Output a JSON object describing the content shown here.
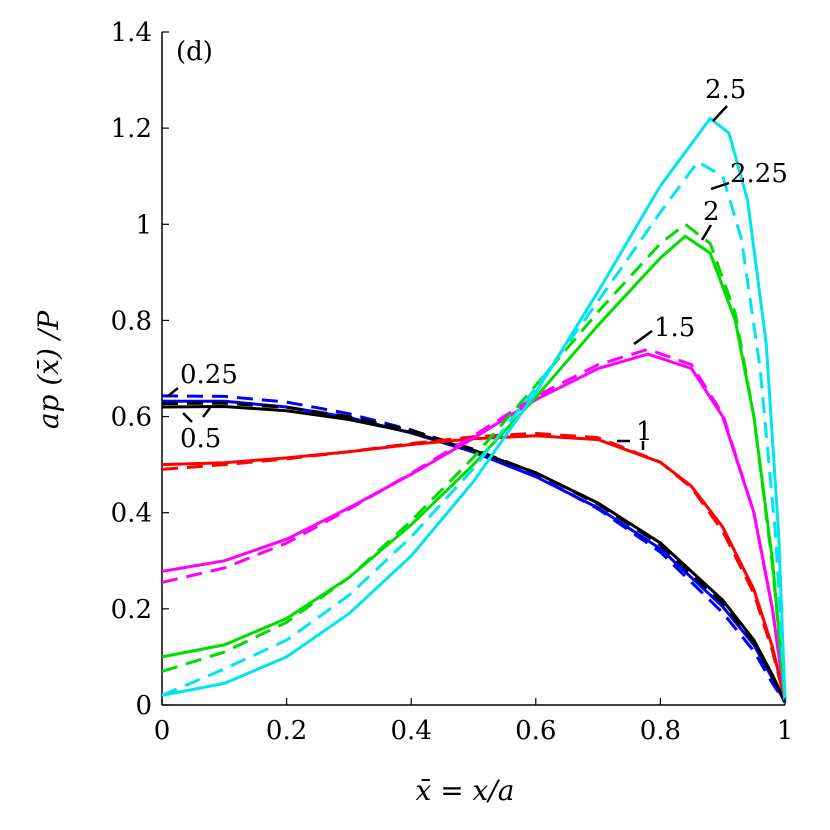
{
  "chart_data": {
    "type": "line",
    "panel_label": "(d)",
    "xlabel": "x̄ = x/a",
    "ylabel": "ap (x̄) /P",
    "xlim": [
      0,
      1
    ],
    "ylim": [
      0,
      1.4
    ],
    "xticks": [
      "0",
      "0.2",
      "0.4",
      "0.6",
      "0.8",
      "1"
    ],
    "yticks": [
      "0",
      "0.2",
      "0.4",
      "0.6",
      "0.8",
      "1",
      "1.2",
      "1.4"
    ],
    "grid": false,
    "series": [
      {
        "label": "0.25",
        "color": "#0000ff",
        "solid": [
          [
            0,
            0.632
          ],
          [
            0.1,
            0.632
          ],
          [
            0.2,
            0.62
          ],
          [
            0.3,
            0.598
          ],
          [
            0.4,
            0.566
          ],
          [
            0.5,
            0.526
          ],
          [
            0.6,
            0.475
          ],
          [
            0.7,
            0.41
          ],
          [
            0.8,
            0.325
          ],
          [
            0.9,
            0.205
          ],
          [
            0.95,
            0.125
          ],
          [
            0.98,
            0.055
          ],
          [
            1,
            0.005
          ]
        ],
        "dashed": [
          [
            0,
            0.643
          ],
          [
            0.1,
            0.642
          ],
          [
            0.2,
            0.63
          ],
          [
            0.3,
            0.606
          ],
          [
            0.4,
            0.572
          ],
          [
            0.5,
            0.53
          ],
          [
            0.6,
            0.477
          ],
          [
            0.7,
            0.408
          ],
          [
            0.8,
            0.318
          ],
          [
            0.9,
            0.192
          ],
          [
            0.95,
            0.112
          ],
          [
            0.98,
            0.045
          ],
          [
            1,
            0.005
          ]
        ]
      },
      {
        "label": "0.5",
        "color": "#000000",
        "solid": [
          [
            0,
            0.62
          ],
          [
            0.1,
            0.621
          ],
          [
            0.2,
            0.612
          ],
          [
            0.3,
            0.594
          ],
          [
            0.4,
            0.567
          ],
          [
            0.5,
            0.53
          ],
          [
            0.6,
            0.483
          ],
          [
            0.7,
            0.42
          ],
          [
            0.8,
            0.337
          ],
          [
            0.9,
            0.218
          ],
          [
            0.95,
            0.135
          ],
          [
            0.98,
            0.062
          ],
          [
            1,
            0.008
          ]
        ],
        "dashed": [
          [
            0,
            0.627
          ],
          [
            0.1,
            0.628
          ],
          [
            0.2,
            0.619
          ],
          [
            0.3,
            0.6
          ],
          [
            0.4,
            0.571
          ],
          [
            0.5,
            0.532
          ],
          [
            0.6,
            0.483
          ],
          [
            0.7,
            0.418
          ],
          [
            0.8,
            0.333
          ],
          [
            0.9,
            0.212
          ],
          [
            0.95,
            0.13
          ],
          [
            0.98,
            0.058
          ],
          [
            1,
            0.008
          ]
        ]
      },
      {
        "label": "1",
        "color": "#ff0000",
        "solid": [
          [
            0,
            0.5
          ],
          [
            0.1,
            0.504
          ],
          [
            0.2,
            0.514
          ],
          [
            0.3,
            0.527
          ],
          [
            0.4,
            0.542
          ],
          [
            0.5,
            0.554
          ],
          [
            0.6,
            0.56
          ],
          [
            0.7,
            0.552
          ],
          [
            0.8,
            0.505
          ],
          [
            0.85,
            0.455
          ],
          [
            0.9,
            0.37
          ],
          [
            0.95,
            0.24
          ],
          [
            0.98,
            0.12
          ],
          [
            1,
            0.01
          ]
        ],
        "dashed": [
          [
            0,
            0.49
          ],
          [
            0.1,
            0.5
          ],
          [
            0.2,
            0.512
          ],
          [
            0.3,
            0.527
          ],
          [
            0.4,
            0.544
          ],
          [
            0.5,
            0.558
          ],
          [
            0.6,
            0.565
          ],
          [
            0.7,
            0.556
          ],
          [
            0.8,
            0.505
          ],
          [
            0.85,
            0.452
          ],
          [
            0.9,
            0.362
          ],
          [
            0.95,
            0.232
          ],
          [
            0.98,
            0.112
          ],
          [
            1,
            0.01
          ]
        ]
      },
      {
        "label": "1.5",
        "color": "#ff00ff",
        "solid": [
          [
            0,
            0.278
          ],
          [
            0.1,
            0.3
          ],
          [
            0.2,
            0.345
          ],
          [
            0.3,
            0.41
          ],
          [
            0.4,
            0.48
          ],
          [
            0.5,
            0.555
          ],
          [
            0.6,
            0.635
          ],
          [
            0.7,
            0.7
          ],
          [
            0.78,
            0.73
          ],
          [
            0.85,
            0.7
          ],
          [
            0.9,
            0.6
          ],
          [
            0.95,
            0.4
          ],
          [
            0.98,
            0.2
          ],
          [
            1,
            0.01
          ]
        ],
        "dashed": [
          [
            0,
            0.255
          ],
          [
            0.1,
            0.285
          ],
          [
            0.2,
            0.337
          ],
          [
            0.3,
            0.407
          ],
          [
            0.4,
            0.482
          ],
          [
            0.5,
            0.56
          ],
          [
            0.6,
            0.642
          ],
          [
            0.7,
            0.708
          ],
          [
            0.78,
            0.74
          ],
          [
            0.85,
            0.708
          ],
          [
            0.9,
            0.605
          ],
          [
            0.95,
            0.4
          ],
          [
            0.98,
            0.198
          ],
          [
            1,
            0.01
          ]
        ]
      },
      {
        "label": "2",
        "color": "#00dd00",
        "solid": [
          [
            0,
            0.1
          ],
          [
            0.1,
            0.125
          ],
          [
            0.2,
            0.18
          ],
          [
            0.3,
            0.265
          ],
          [
            0.4,
            0.375
          ],
          [
            0.5,
            0.5
          ],
          [
            0.6,
            0.64
          ],
          [
            0.7,
            0.79
          ],
          [
            0.8,
            0.93
          ],
          [
            0.84,
            0.975
          ],
          [
            0.88,
            0.94
          ],
          [
            0.92,
            0.8
          ],
          [
            0.95,
            0.6
          ],
          [
            0.98,
            0.3
          ],
          [
            1,
            0.01
          ]
        ],
        "dashed": [
          [
            0,
            0.07
          ],
          [
            0.1,
            0.11
          ],
          [
            0.2,
            0.172
          ],
          [
            0.3,
            0.265
          ],
          [
            0.4,
            0.383
          ],
          [
            0.5,
            0.515
          ],
          [
            0.6,
            0.665
          ],
          [
            0.7,
            0.818
          ],
          [
            0.8,
            0.96
          ],
          [
            0.84,
            1.0
          ],
          [
            0.88,
            0.96
          ],
          [
            0.92,
            0.815
          ],
          [
            0.95,
            0.6
          ],
          [
            0.98,
            0.29
          ],
          [
            1,
            0.01
          ]
        ]
      },
      {
        "label": "2.5",
        "color": "#00e5ee",
        "solid": [
          [
            0,
            0.02
          ],
          [
            0.1,
            0.045
          ],
          [
            0.2,
            0.1
          ],
          [
            0.3,
            0.19
          ],
          [
            0.4,
            0.31
          ],
          [
            0.5,
            0.465
          ],
          [
            0.6,
            0.65
          ],
          [
            0.7,
            0.86
          ],
          [
            0.8,
            1.08
          ],
          [
            0.88,
            1.22
          ],
          [
            0.91,
            1.19
          ],
          [
            0.94,
            1.05
          ],
          [
            0.97,
            0.75
          ],
          [
            0.99,
            0.35
          ],
          [
            1,
            0.01
          ]
        ]
      },
      {
        "label": "2.25",
        "color": "#00e5ee",
        "dashed": [
          [
            0,
            0.02
          ],
          [
            0.1,
            0.075
          ],
          [
            0.2,
            0.135
          ],
          [
            0.3,
            0.228
          ],
          [
            0.4,
            0.35
          ],
          [
            0.5,
            0.492
          ],
          [
            0.6,
            0.66
          ],
          [
            0.7,
            0.84
          ],
          [
            0.8,
            1.025
          ],
          [
            0.86,
            1.13
          ],
          [
            0.9,
            1.1
          ],
          [
            0.93,
            0.97
          ],
          [
            0.96,
            0.7
          ],
          [
            0.985,
            0.35
          ],
          [
            1,
            0.01
          ]
        ]
      }
    ],
    "annotations": [
      {
        "text": "0.25",
        "series": "0.25"
      },
      {
        "text": "0.5",
        "series": "0.5"
      },
      {
        "text": "1",
        "series": "1"
      },
      {
        "text": "1.5",
        "series": "1.5"
      },
      {
        "text": "2",
        "series": "2"
      },
      {
        "text": "2.25",
        "series": "2.25"
      },
      {
        "text": "2.5",
        "series": "2.5"
      }
    ]
  }
}
